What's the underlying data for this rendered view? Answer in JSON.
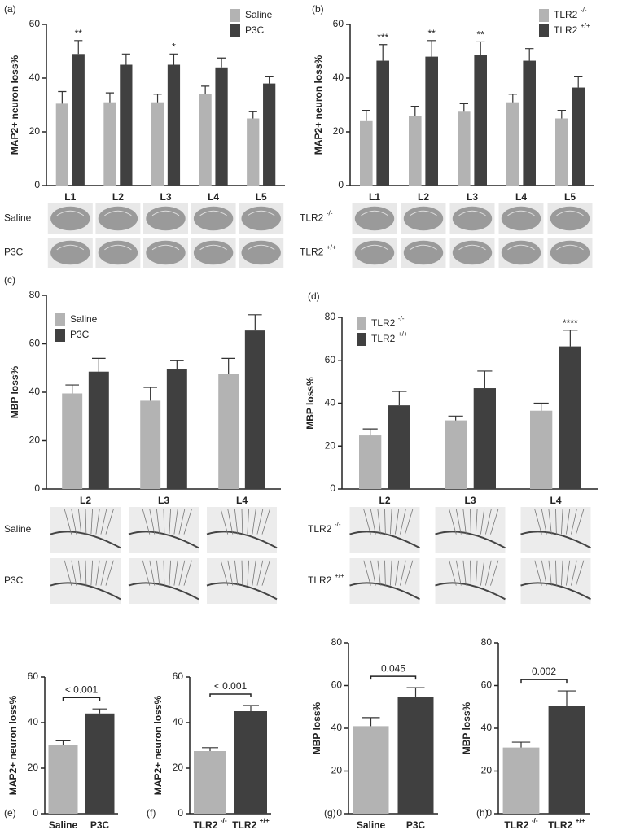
{
  "chart_data": [
    {
      "type": "bar",
      "panel": "(a)",
      "y_label": "MAP2+ neuron loss%",
      "categories": [
        "L1",
        "L2",
        "L3",
        "L4",
        "L5"
      ],
      "series": [
        {
          "name": "Saline",
          "color": "#b3b3b3",
          "values": [
            30.5,
            31,
            31,
            34,
            25
          ],
          "errors": [
            4.5,
            3.5,
            3,
            3,
            2.5
          ]
        },
        {
          "name": "P3C",
          "color": "#404040",
          "values": [
            49,
            45,
            45,
            44,
            38
          ],
          "errors": [
            5,
            4,
            4,
            3.5,
            2.5
          ]
        }
      ],
      "significance": [
        "**",
        null,
        "*",
        null,
        null
      ],
      "image_rows": [
        "Saline",
        "P3C"
      ],
      "ylim": [
        0,
        60
      ],
      "yticks": [
        0,
        20,
        40,
        60
      ]
    },
    {
      "type": "bar",
      "panel": "(b)",
      "y_label": "MAP2+ neuron loss%",
      "categories": [
        "L1",
        "L2",
        "L3",
        "L4",
        "L5"
      ],
      "series": [
        {
          "name": "TLR2 -/-",
          "color": "#b3b3b3",
          "values": [
            24,
            26,
            27.5,
            31,
            25
          ],
          "errors": [
            4,
            3.5,
            3,
            3,
            3
          ]
        },
        {
          "name": "TLR2 +/+",
          "color": "#404040",
          "values": [
            46.5,
            48,
            48.5,
            46.5,
            36.5
          ],
          "errors": [
            6,
            6,
            5,
            4.5,
            4
          ]
        }
      ],
      "significance": [
        "***",
        "**",
        "**",
        null,
        null
      ],
      "image_rows": [
        "TLR2 -/-",
        "TLR2 +/+"
      ],
      "ylim": [
        0,
        60
      ],
      "yticks": [
        0,
        20,
        40,
        60
      ]
    },
    {
      "type": "bar",
      "panel": "(c)",
      "y_label": "MBP loss%",
      "categories": [
        "L2",
        "L3",
        "L4"
      ],
      "series": [
        {
          "name": "Saline",
          "color": "#b3b3b3",
          "values": [
            39.5,
            36.5,
            47.5
          ],
          "errors": [
            3.5,
            5.5,
            6.5
          ]
        },
        {
          "name": "P3C",
          "color": "#404040",
          "values": [
            48.5,
            49.5,
            65.5
          ],
          "errors": [
            5.5,
            3.5,
            6.5
          ]
        }
      ],
      "image_rows": [
        "Saline",
        "P3C"
      ],
      "ylim": [
        0,
        80
      ],
      "yticks": [
        0,
        20,
        40,
        60,
        80
      ]
    },
    {
      "type": "bar",
      "panel": "(d)",
      "y_label": "MBP loss%",
      "categories": [
        "L2",
        "L3",
        "L4"
      ],
      "series": [
        {
          "name": "TLR2 -/-",
          "color": "#b3b3b3",
          "values": [
            25,
            32,
            36.5
          ],
          "errors": [
            3,
            2,
            3.5
          ]
        },
        {
          "name": "TLR2 +/+",
          "color": "#404040",
          "values": [
            39,
            47,
            66.5
          ],
          "errors": [
            6.5,
            8,
            7.5
          ]
        }
      ],
      "significance": [
        null,
        null,
        "****"
      ],
      "image_rows": [
        "TLR2 -/-",
        "TLR2 +/+"
      ],
      "ylim": [
        0,
        80
      ],
      "yticks": [
        0,
        20,
        40,
        60,
        80
      ]
    },
    {
      "type": "bar",
      "panel": "(e)",
      "y_label": "MAP2+ neuron loss%",
      "categories": [
        "Saline",
        "P3C"
      ],
      "values": [
        30,
        44
      ],
      "errors": [
        2,
        2
      ],
      "colors": [
        "#b3b3b3",
        "#404040"
      ],
      "comparison": "< 0.001",
      "ylim": [
        0,
        60
      ],
      "yticks": [
        0,
        20,
        40,
        60
      ]
    },
    {
      "type": "bar",
      "panel": "(f)",
      "y_label": "MAP2+ neuron loss%",
      "categories": [
        "TLR2 -/-",
        "TLR2 +/+"
      ],
      "values": [
        27.5,
        45
      ],
      "errors": [
        1.5,
        2.5
      ],
      "colors": [
        "#b3b3b3",
        "#404040"
      ],
      "comparison": "< 0.001",
      "ylim": [
        0,
        60
      ],
      "yticks": [
        0,
        20,
        40,
        60
      ]
    },
    {
      "type": "bar",
      "panel": "(g)",
      "y_label": "MBP loss%",
      "categories": [
        "Saline",
        "P3C"
      ],
      "values": [
        41,
        54.5
      ],
      "errors": [
        4,
        4.5
      ],
      "colors": [
        "#b3b3b3",
        "#404040"
      ],
      "comparison": "0.045",
      "ylim": [
        0,
        80
      ],
      "yticks": [
        0,
        20,
        40,
        60,
        80
      ]
    },
    {
      "type": "bar",
      "panel": "(h)",
      "y_label": "MBP loss%",
      "categories": [
        "TLR2 -/-",
        "TLR2 +/+"
      ],
      "values": [
        31,
        50.5
      ],
      "errors": [
        2.5,
        7
      ],
      "colors": [
        "#b3b3b3",
        "#404040"
      ],
      "comparison": "0.002",
      "ylim": [
        0,
        80
      ],
      "yticks": [
        0,
        20,
        40,
        60,
        80
      ]
    }
  ]
}
